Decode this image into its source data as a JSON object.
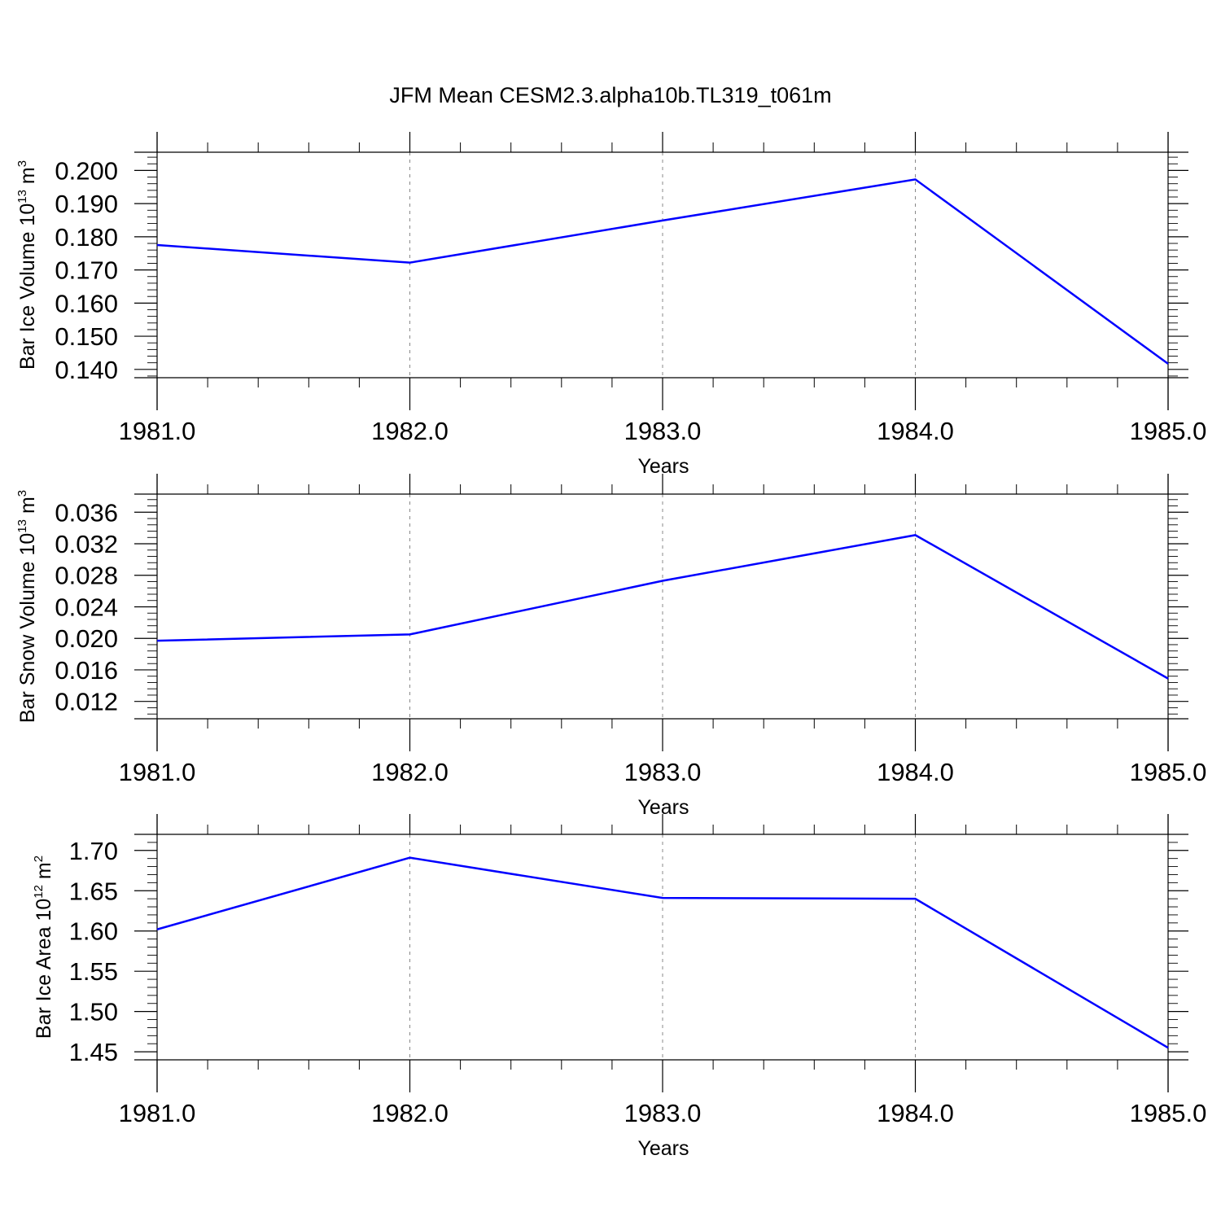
{
  "title": "JFM Mean CESM2.3.alpha10b.TL319_t061m",
  "colors": {
    "line": "#0000ff",
    "axis": "#000000",
    "grid": "#888888"
  },
  "chart_data": [
    {
      "type": "line",
      "ylabel": {
        "main": "Bar Ice Volume 10",
        "exp": "13",
        "mid": " m",
        "unit_exp": "3"
      },
      "xlabel": "Years",
      "x": [
        1981,
        1982,
        1983,
        1984,
        1985
      ],
      "xticks": [
        "1981.0",
        "1982.0",
        "1983.0",
        "1984.0",
        "1985.0"
      ],
      "xlim": [
        1981,
        1985
      ],
      "ylim": [
        0.1375,
        0.2055
      ],
      "yticks": [
        "0.140",
        "0.150",
        "0.160",
        "0.170",
        "0.180",
        "0.190",
        "0.200"
      ],
      "ytick_values": [
        0.14,
        0.15,
        0.16,
        0.17,
        0.18,
        0.19,
        0.2
      ],
      "series": [
        {
          "values": [
            0.1775,
            0.1722,
            0.1849,
            0.1973,
            0.1417
          ]
        }
      ],
      "grid": "vertical dashed at major x ticks"
    },
    {
      "type": "line",
      "ylabel": {
        "main": "Bar Snow Volume 10",
        "exp": "13",
        "mid": " m",
        "unit_exp": "3"
      },
      "xlabel": "Years",
      "x": [
        1981,
        1982,
        1983,
        1984,
        1985
      ],
      "xticks": [
        "1981.0",
        "1982.0",
        "1983.0",
        "1984.0",
        "1985.0"
      ],
      "xlim": [
        1981,
        1985
      ],
      "ylim": [
        0.0098,
        0.0383
      ],
      "yticks": [
        "0.012",
        "0.016",
        "0.020",
        "0.024",
        "0.028",
        "0.032",
        "0.036"
      ],
      "ytick_values": [
        0.012,
        0.016,
        0.02,
        0.024,
        0.028,
        0.032,
        0.036
      ],
      "series": [
        {
          "values": [
            0.0197,
            0.0205,
            0.0273,
            0.0331,
            0.0149
          ]
        }
      ],
      "grid": "vertical dashed at major x ticks"
    },
    {
      "type": "line",
      "ylabel": {
        "main": "Bar Ice Area 10",
        "exp": "12",
        "mid": " m",
        "unit_exp": "2"
      },
      "xlabel": "Years",
      "x": [
        1981,
        1982,
        1983,
        1984,
        1985
      ],
      "xticks": [
        "1981.0",
        "1982.0",
        "1983.0",
        "1984.0",
        "1985.0"
      ],
      "xlim": [
        1981,
        1985
      ],
      "ylim": [
        1.44,
        1.72
      ],
      "yticks": [
        "1.45",
        "1.50",
        "1.55",
        "1.60",
        "1.65",
        "1.70"
      ],
      "ytick_values": [
        1.45,
        1.5,
        1.55,
        1.6,
        1.65,
        1.7
      ],
      "series": [
        {
          "values": [
            1.602,
            1.691,
            1.641,
            1.64,
            1.455
          ]
        }
      ],
      "grid": "vertical dashed at major x ticks"
    }
  ]
}
